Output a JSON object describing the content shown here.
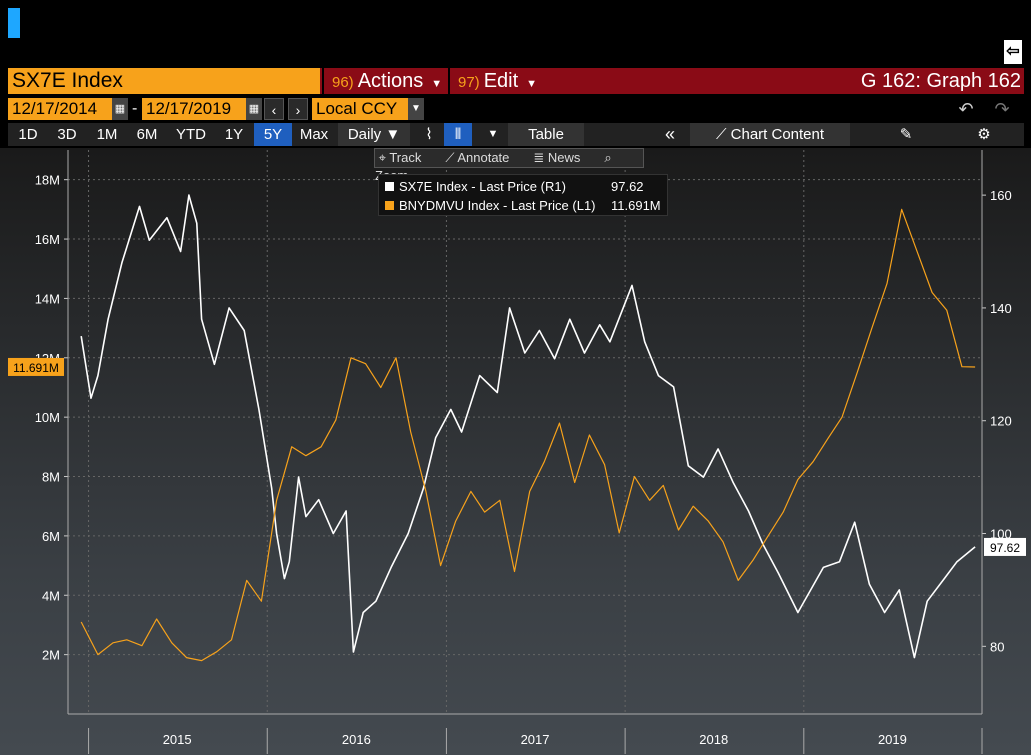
{
  "header": {
    "ticker": "SX7E Index",
    "actions": {
      "num": "96)",
      "label": "Actions"
    },
    "edit": {
      "num": "97)",
      "label": "Edit"
    },
    "graph_title": "G 162: Graph 162"
  },
  "dates": {
    "start": "12/17/2014",
    "end": "12/17/2019",
    "sep": "-",
    "currency": "Local CCY"
  },
  "toolbar": {
    "periods": [
      "1D",
      "3D",
      "1M",
      "6M",
      "YTD",
      "1Y",
      "5Y",
      "Max"
    ],
    "active_period": "5Y",
    "frequency": "Daily ▼",
    "table_label": "Table",
    "chart_content_label": "Chart Content"
  },
  "tools": {
    "track": "Track",
    "annotate": "Annotate",
    "news": "News",
    "zoom": "Zoom"
  },
  "legend": {
    "items": [
      {
        "label": "SX7E Index - Last Price (R1)",
        "value": "97.62",
        "color": "#ffffff"
      },
      {
        "label": "BNYDMVU Index - Last Price (L1)",
        "value": "11.691M",
        "color": "#f7a21b"
      }
    ]
  },
  "chart_data": {
    "type": "line",
    "x_ticks": [
      "2015",
      "2016",
      "2017",
      "2018",
      "2019"
    ],
    "left_axis": {
      "ticks": [
        "2M",
        "4M",
        "6M",
        "8M",
        "10M",
        "12M",
        "14M",
        "16M",
        "18M"
      ],
      "range": [
        0,
        19000000
      ]
    },
    "right_axis": {
      "ticks": [
        "80",
        "100",
        "120",
        "140",
        "160"
      ],
      "range": [
        68,
        168
      ]
    },
    "last_left_label": "11.691M",
    "last_right_label": "97.62",
    "series": [
      {
        "name": "SX7E Index - Last Price (R1)",
        "axis": "right",
        "color": "#ffffff",
        "points": [
          [
            "2014-12-17",
            135
          ],
          [
            "2015-01-06",
            124
          ],
          [
            "2015-01-20",
            128
          ],
          [
            "2015-02-10",
            138
          ],
          [
            "2015-03-10",
            148
          ],
          [
            "2015-04-15",
            158
          ],
          [
            "2015-05-05",
            152
          ],
          [
            "2015-06-10",
            156
          ],
          [
            "2015-07-08",
            150
          ],
          [
            "2015-07-25",
            160
          ],
          [
            "2015-08-10",
            155
          ],
          [
            "2015-08-20",
            138
          ],
          [
            "2015-09-15",
            130
          ],
          [
            "2015-10-15",
            140
          ],
          [
            "2015-11-15",
            136
          ],
          [
            "2015-12-15",
            122
          ],
          [
            "2016-01-10",
            108
          ],
          [
            "2016-01-20",
            100
          ],
          [
            "2016-02-05",
            92
          ],
          [
            "2016-02-15",
            95
          ],
          [
            "2016-03-05",
            110
          ],
          [
            "2016-03-20",
            103
          ],
          [
            "2016-04-15",
            106
          ],
          [
            "2016-05-15",
            100
          ],
          [
            "2016-06-10",
            104
          ],
          [
            "2016-06-25",
            79
          ],
          [
            "2016-07-15",
            86
          ],
          [
            "2016-08-10",
            88
          ],
          [
            "2016-09-10",
            94
          ],
          [
            "2016-10-15",
            100
          ],
          [
            "2016-11-15",
            108
          ],
          [
            "2016-12-10",
            117
          ],
          [
            "2017-01-10",
            122
          ],
          [
            "2017-02-01",
            118
          ],
          [
            "2017-03-10",
            128
          ],
          [
            "2017-04-15",
            125
          ],
          [
            "2017-05-10",
            140
          ],
          [
            "2017-06-10",
            132
          ],
          [
            "2017-07-10",
            136
          ],
          [
            "2017-08-10",
            131
          ],
          [
            "2017-09-10",
            138
          ],
          [
            "2017-10-10",
            132
          ],
          [
            "2017-11-10",
            137
          ],
          [
            "2017-12-01",
            134
          ],
          [
            "2018-01-15",
            144
          ],
          [
            "2018-02-10",
            134
          ],
          [
            "2018-03-10",
            128
          ],
          [
            "2018-04-10",
            126
          ],
          [
            "2018-05-10",
            112
          ],
          [
            "2018-06-10",
            110
          ],
          [
            "2018-07-10",
            115
          ],
          [
            "2018-08-10",
            109
          ],
          [
            "2018-09-10",
            104
          ],
          [
            "2018-10-10",
            98
          ],
          [
            "2018-11-10",
            93
          ],
          [
            "2018-12-20",
            86
          ],
          [
            "2019-01-15",
            90
          ],
          [
            "2019-02-10",
            94
          ],
          [
            "2019-03-15",
            95
          ],
          [
            "2019-04-15",
            102
          ],
          [
            "2019-05-15",
            91
          ],
          [
            "2019-06-15",
            86
          ],
          [
            "2019-07-15",
            90
          ],
          [
            "2019-08-15",
            78
          ],
          [
            "2019-09-10",
            88
          ],
          [
            "2019-10-15",
            92
          ],
          [
            "2019-11-10",
            95
          ],
          [
            "2019-12-17",
            97.62
          ]
        ]
      },
      {
        "name": "BNYDMVU Index - Last Price (L1)",
        "axis": "left",
        "color": "#f7a21b",
        "points": [
          [
            "2014-12-17",
            3100000
          ],
          [
            "2015-01-20",
            2000000
          ],
          [
            "2015-02-20",
            2400000
          ],
          [
            "2015-03-20",
            2500000
          ],
          [
            "2015-04-20",
            2300000
          ],
          [
            "2015-05-20",
            3200000
          ],
          [
            "2015-06-20",
            2400000
          ],
          [
            "2015-07-20",
            1900000
          ],
          [
            "2015-08-20",
            1800000
          ],
          [
            "2015-09-20",
            2100000
          ],
          [
            "2015-10-20",
            2500000
          ],
          [
            "2015-11-20",
            4500000
          ],
          [
            "2015-12-20",
            3800000
          ],
          [
            "2016-01-20",
            7200000
          ],
          [
            "2016-02-20",
            9000000
          ],
          [
            "2016-03-20",
            8700000
          ],
          [
            "2016-04-20",
            9000000
          ],
          [
            "2016-05-20",
            9900000
          ],
          [
            "2016-06-20",
            12000000
          ],
          [
            "2016-07-20",
            11800000
          ],
          [
            "2016-08-20",
            11000000
          ],
          [
            "2016-09-20",
            12000000
          ],
          [
            "2016-10-20",
            9500000
          ],
          [
            "2016-11-20",
            7500000
          ],
          [
            "2016-12-20",
            5000000
          ],
          [
            "2017-01-20",
            6500000
          ],
          [
            "2017-02-20",
            7500000
          ],
          [
            "2017-03-20",
            6800000
          ],
          [
            "2017-04-20",
            7200000
          ],
          [
            "2017-05-20",
            4800000
          ],
          [
            "2017-06-20",
            7500000
          ],
          [
            "2017-07-20",
            8500000
          ],
          [
            "2017-08-20",
            9800000
          ],
          [
            "2017-09-20",
            7800000
          ],
          [
            "2017-10-20",
            9400000
          ],
          [
            "2017-11-20",
            8400000
          ],
          [
            "2017-12-20",
            6100000
          ],
          [
            "2018-01-20",
            8000000
          ],
          [
            "2018-02-20",
            7200000
          ],
          [
            "2018-03-20",
            7700000
          ],
          [
            "2018-04-20",
            6200000
          ],
          [
            "2018-05-20",
            7000000
          ],
          [
            "2018-06-20",
            6500000
          ],
          [
            "2018-07-20",
            5800000
          ],
          [
            "2018-08-20",
            4500000
          ],
          [
            "2018-09-20",
            5200000
          ],
          [
            "2018-10-20",
            6000000
          ],
          [
            "2018-11-20",
            6800000
          ],
          [
            "2018-12-20",
            7900000
          ],
          [
            "2019-01-20",
            8500000
          ],
          [
            "2019-02-20",
            9300000
          ],
          [
            "2019-03-20",
            10000000
          ],
          [
            "2019-04-20",
            11500000
          ],
          [
            "2019-05-20",
            13000000
          ],
          [
            "2019-06-20",
            14500000
          ],
          [
            "2019-07-20",
            17000000
          ],
          [
            "2019-08-20",
            15600000
          ],
          [
            "2019-09-20",
            14200000
          ],
          [
            "2019-10-20",
            13600000
          ],
          [
            "2019-11-20",
            11700000
          ],
          [
            "2019-12-17",
            11691000
          ]
        ]
      }
    ],
    "grid": true,
    "legend_position": "top-center"
  }
}
